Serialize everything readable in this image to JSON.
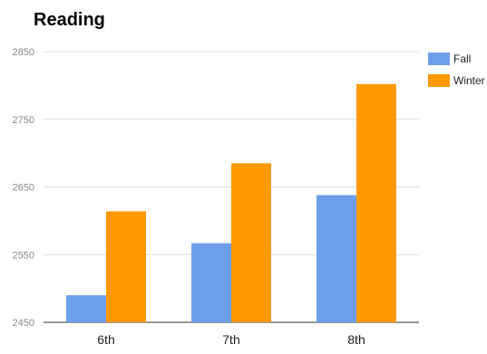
{
  "chart_data": {
    "type": "bar",
    "title": "Reading",
    "categories": [
      "6th",
      "7th",
      "8th"
    ],
    "series": [
      {
        "name": "Fall",
        "color": "#6d9eeb",
        "values": [
          2490,
          2567,
          2638
        ]
      },
      {
        "name": "Winter",
        "color": "#ff9900",
        "values": [
          2614,
          2685,
          2802
        ]
      }
    ],
    "ylim": [
      2450,
      2850
    ],
    "yticks": [
      2450,
      2550,
      2650,
      2750,
      2850
    ],
    "grid": true,
    "legend": "right",
    "xlabel": "",
    "ylabel": ""
  }
}
